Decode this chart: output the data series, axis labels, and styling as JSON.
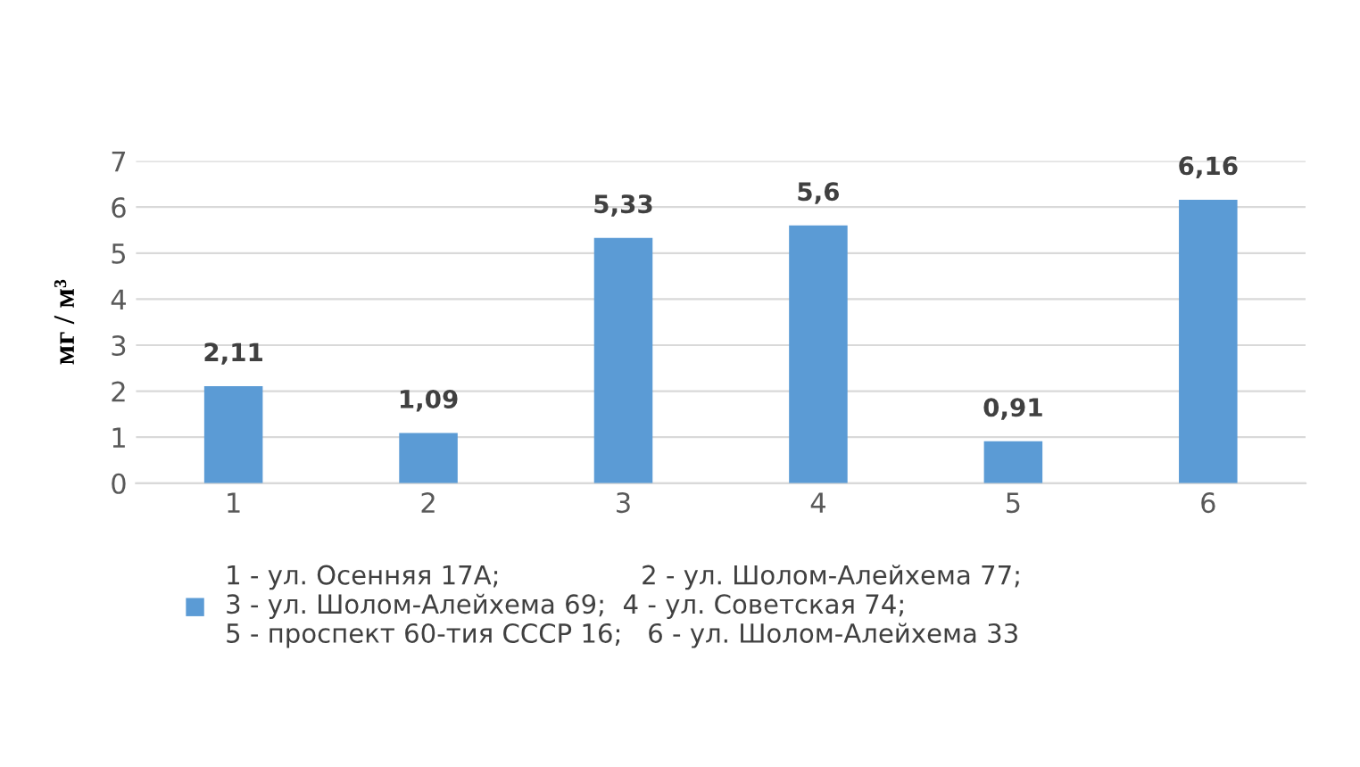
{
  "chart_data": {
    "type": "bar",
    "ylabel": "мг / м³",
    "categories": [
      "1",
      "2",
      "3",
      "4",
      "5",
      "6"
    ],
    "series": [
      {
        "name": "1 - ул. Осенняя 17А;                 2 - ул. Шолом-Алейхема 77;\n3 - ул. Шолом-Алейхема 69;  4 - ул. Советская 74;\n5 - проспект 60-тия СССР 16;   6 - ул. Шолом-Алейхема 33",
        "color": "#5b9bd5",
        "values": [
          2.11,
          1.09,
          5.33,
          5.6,
          0.91,
          6.16
        ],
        "value_labels": [
          "2,11",
          "1,09",
          "5,33",
          "5,6",
          "0,91",
          "6,16"
        ]
      }
    ],
    "ylim": [
      0,
      7
    ],
    "yticks": [
      0,
      1,
      2,
      3,
      4,
      5,
      6,
      7
    ],
    "grid": "y",
    "legend": "bottom"
  }
}
